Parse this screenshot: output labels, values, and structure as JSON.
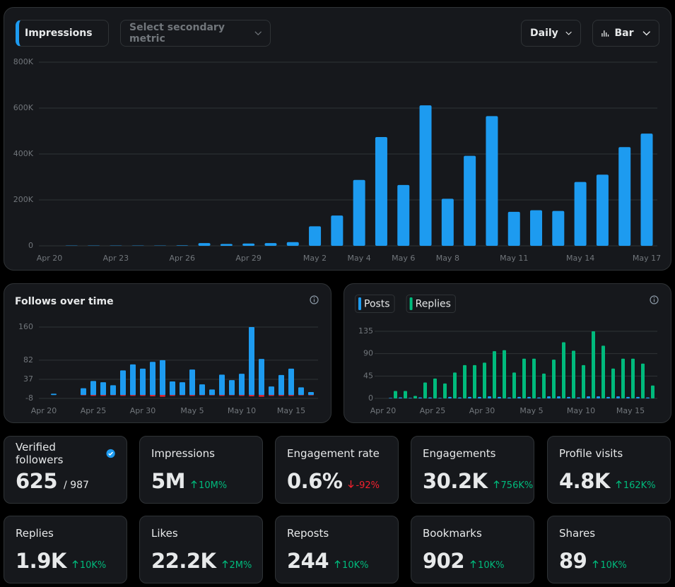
{
  "controls": {
    "primary_metric": "Impressions",
    "secondary_metric": "Select secondary metric",
    "interval": "Daily",
    "chart_style": "Bar"
  },
  "chart_data": [
    {
      "type": "bar",
      "categories": [
        "Apr 20",
        null,
        null,
        "Apr 23",
        null,
        null,
        "Apr 26",
        null,
        null,
        "Apr 29",
        null,
        null,
        "May 2",
        null,
        "May 4",
        null,
        "May 6",
        null,
        "May 8",
        null,
        null,
        "May 11",
        null,
        null,
        "May 14",
        null,
        null,
        "May 17"
      ],
      "values": [
        0,
        1000,
        1000,
        1000,
        1000,
        1000,
        2000,
        12000,
        8000,
        10000,
        12000,
        16000,
        85000,
        132000,
        287000,
        474000,
        265000,
        612000,
        205000,
        392000,
        565000,
        148000,
        155000,
        152000,
        278000,
        310000,
        430000,
        489000
      ],
      "color": "#1d9bf0",
      "ylim": [
        0,
        800000
      ],
      "yticks": [
        0,
        {
          "value": 200000,
          "label": "200K"
        },
        {
          "value": 400000,
          "label": "400K"
        },
        {
          "value": 600000,
          "label": "600K"
        },
        {
          "value": 800000,
          "label": "800K"
        }
      ],
      "grid": true
    },
    {
      "type": "bar",
      "title": "Follows over time",
      "stacked": true,
      "categories": [
        "Apr 20",
        null,
        null,
        null,
        null,
        "Apr 25",
        null,
        null,
        null,
        null,
        "Apr 30",
        null,
        null,
        null,
        null,
        "May 5",
        null,
        null,
        null,
        null,
        "May 10",
        null,
        null,
        null,
        null,
        "May 15",
        null,
        null
      ],
      "series": [
        {
          "color": "#1d9bf0",
          "values": [
            0,
            3,
            0,
            0,
            16,
            33,
            30,
            23,
            58,
            72,
            62,
            78,
            82,
            32,
            30,
            60,
            25,
            13,
            48,
            35,
            50,
            160,
            85,
            20,
            47,
            62,
            18,
            7
          ]
        },
        {
          "color": "#f4212e",
          "values": [
            0,
            0,
            0,
            0,
            -1,
            -2,
            -2,
            -1,
            -2,
            -2,
            -2,
            -3,
            -4,
            -2,
            -1,
            -2,
            -1,
            -1,
            -2,
            -1,
            -2,
            -3,
            -4,
            -2,
            -2,
            -2,
            -1,
            -1
          ]
        }
      ],
      "ylim": [
        -8,
        160
      ],
      "yticks": [
        -8,
        37,
        82,
        160
      ],
      "grid": true
    },
    {
      "type": "bar",
      "legend": "top-left",
      "categories": [
        "Apr 20",
        null,
        null,
        null,
        null,
        "Apr 25",
        null,
        null,
        null,
        null,
        "Apr 30",
        null,
        null,
        null,
        null,
        "May 5",
        null,
        null,
        null,
        null,
        "May 10",
        null,
        null,
        null,
        null,
        "May 15",
        null,
        null
      ],
      "series": [
        {
          "name": "Posts",
          "color": "#1d9bf0",
          "values": [
            0,
            1,
            2,
            1,
            2,
            2,
            1,
            3,
            2,
            3,
            3,
            4,
            3,
            2,
            3,
            3,
            2,
            4,
            4,
            3,
            2,
            4,
            4,
            3,
            4,
            3,
            3,
            2
          ]
        },
        {
          "name": "Replies",
          "color": "#00ba7c",
          "values": [
            0,
            15,
            15,
            5,
            32,
            40,
            30,
            52,
            67,
            67,
            72,
            95,
            97,
            52,
            80,
            80,
            50,
            78,
            113,
            96,
            67,
            135,
            106,
            60,
            80,
            80,
            70,
            26
          ]
        }
      ],
      "ylim": [
        0,
        135
      ],
      "yticks": [
        0,
        45,
        90,
        135
      ],
      "grid": true
    }
  ],
  "stats": [
    {
      "label": "Verified followers",
      "value": "625",
      "total": "/ 987"
    },
    {
      "label": "Impressions",
      "value": "5M",
      "change": "10M%"
    },
    {
      "label": "Engagement rate",
      "value": "0.6%",
      "change": "-92%"
    },
    {
      "label": "Engagements",
      "value": "30.2K",
      "change": "756K%"
    },
    {
      "label": "Profile visits",
      "value": "4.8K",
      "change": "162K%"
    },
    {
      "label": "Replies",
      "value": "1.9K",
      "change": "10K%"
    },
    {
      "label": "Likes",
      "value": "22.2K",
      "change": "2M%"
    },
    {
      "label": "Reposts",
      "value": "244",
      "change": "10K%"
    },
    {
      "label": "Bookmarks",
      "value": "902",
      "change": "10K%"
    },
    {
      "label": "Shares",
      "value": "89",
      "change": "10K%"
    }
  ]
}
